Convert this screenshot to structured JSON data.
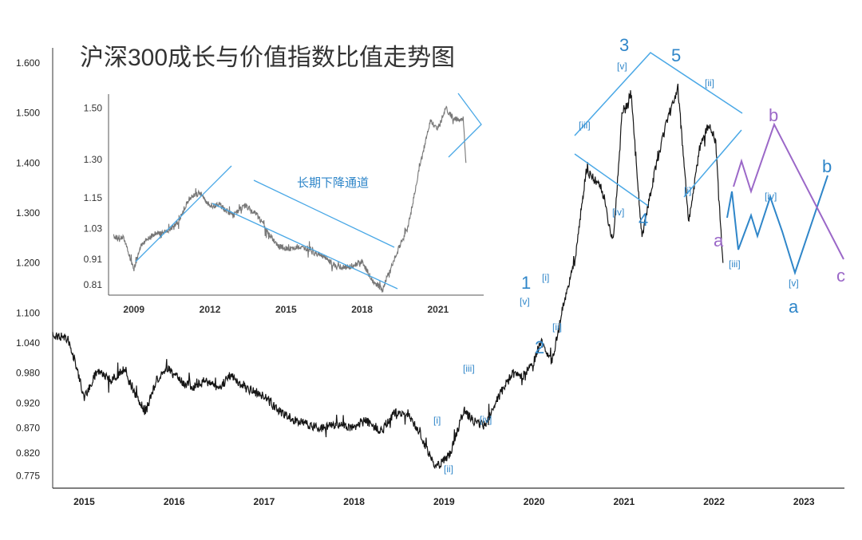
{
  "chart_data": {
    "type": "line",
    "title": "沪深300成长与价值指数比值走势图",
    "main": {
      "xlim": [
        2014.65,
        2023.45
      ],
      "ylim": [
        0.75,
        1.63
      ],
      "yticks": [
        "1.600",
        "1.500",
        "1.400",
        "1.300",
        "1.200",
        "1.100",
        "1.040",
        "0.980",
        "0.920",
        "0.870",
        "0.820",
        "0.775"
      ],
      "xticks": [
        "2015",
        "2016",
        "2017",
        "2018",
        "2019",
        "2020",
        "2021",
        "2022",
        "2023"
      ],
      "anchors": [
        [
          2014.65,
          1.055
        ],
        [
          2014.82,
          1.05
        ],
        [
          2014.92,
          0.99
        ],
        [
          2015.0,
          0.93
        ],
        [
          2015.15,
          0.985
        ],
        [
          2015.3,
          0.965
        ],
        [
          2015.45,
          0.99
        ],
        [
          2015.55,
          0.945
        ],
        [
          2015.68,
          0.9
        ],
        [
          2015.8,
          0.965
        ],
        [
          2015.92,
          0.99
        ],
        [
          2016.0,
          0.975
        ],
        [
          2016.2,
          0.95
        ],
        [
          2016.35,
          0.965
        ],
        [
          2016.5,
          0.95
        ],
        [
          2016.62,
          0.975
        ],
        [
          2016.8,
          0.95
        ],
        [
          2017.0,
          0.935
        ],
        [
          2017.15,
          0.905
        ],
        [
          2017.35,
          0.885
        ],
        [
          2017.6,
          0.87
        ],
        [
          2017.8,
          0.875
        ],
        [
          2018.0,
          0.87
        ],
        [
          2018.12,
          0.885
        ],
        [
          2018.3,
          0.865
        ],
        [
          2018.45,
          0.9
        ],
        [
          2018.6,
          0.9
        ],
        [
          2018.72,
          0.865
        ],
        [
          2018.9,
          0.79
        ],
        [
          2019.0,
          0.805
        ],
        [
          2019.07,
          0.82
        ],
        [
          2019.22,
          0.905
        ],
        [
          2019.32,
          0.885
        ],
        [
          2019.45,
          0.875
        ],
        [
          2019.6,
          0.93
        ],
        [
          2019.75,
          0.98
        ],
        [
          2019.88,
          0.975
        ],
        [
          2019.98,
          0.995
        ],
        [
          2020.08,
          1.045
        ],
        [
          2020.2,
          1.0
        ],
        [
          2020.33,
          1.12
        ],
        [
          2020.45,
          1.2
        ],
        [
          2020.58,
          1.385
        ],
        [
          2020.75,
          1.35
        ],
        [
          2020.88,
          1.24
        ],
        [
          2020.98,
          1.5
        ],
        [
          2021.08,
          1.54
        ],
        [
          2021.2,
          1.25
        ],
        [
          2021.35,
          1.39
        ],
        [
          2021.5,
          1.5
        ],
        [
          2021.6,
          1.55
        ],
        [
          2021.72,
          1.28
        ],
        [
          2021.85,
          1.44
        ],
        [
          2021.95,
          1.48
        ],
        [
          2022.02,
          1.44
        ],
        [
          2022.1,
          1.2
        ]
      ]
    },
    "inset": {
      "xlim": [
        2008.0,
        2022.8
      ],
      "ylim": [
        0.77,
        1.555
      ],
      "yticks": [
        "1.50",
        "1.30",
        "1.15",
        "1.03",
        "0.91",
        "0.81"
      ],
      "xticks": [
        "2009",
        "2012",
        "2015",
        "2018",
        "2021"
      ],
      "label": "长期下降通道",
      "anchors": [
        [
          2008.2,
          1.0
        ],
        [
          2008.6,
          0.99
        ],
        [
          2009.0,
          0.87
        ],
        [
          2009.3,
          0.97
        ],
        [
          2009.8,
          1.01
        ],
        [
          2010.3,
          1.02
        ],
        [
          2010.7,
          1.05
        ],
        [
          2011.2,
          1.15
        ],
        [
          2011.6,
          1.17
        ],
        [
          2012.0,
          1.12
        ],
        [
          2012.4,
          1.12
        ],
        [
          2012.9,
          1.08
        ],
        [
          2013.4,
          1.12
        ],
        [
          2013.9,
          1.08
        ],
        [
          2014.3,
          1.01
        ],
        [
          2014.7,
          0.96
        ],
        [
          2015.2,
          0.95
        ],
        [
          2015.6,
          0.96
        ],
        [
          2016.0,
          0.94
        ],
        [
          2016.5,
          0.92
        ],
        [
          2017.0,
          0.88
        ],
        [
          2017.5,
          0.88
        ],
        [
          2018.0,
          0.9
        ],
        [
          2018.4,
          0.83
        ],
        [
          2018.8,
          0.79
        ],
        [
          2019.3,
          0.92
        ],
        [
          2019.8,
          1.03
        ],
        [
          2020.3,
          1.28
        ],
        [
          2020.7,
          1.45
        ],
        [
          2021.0,
          1.42
        ],
        [
          2021.3,
          1.5
        ],
        [
          2021.6,
          1.46
        ],
        [
          2022.0,
          1.45
        ],
        [
          2022.1,
          1.29
        ]
      ]
    },
    "wave_labels": {
      "big": [
        "1",
        "2",
        "3",
        "4",
        "5"
      ],
      "sub": [
        "[i]",
        "[ii]",
        "[iii]",
        "[iv]",
        "[v]"
      ],
      "projection": [
        "a",
        "b",
        "c"
      ]
    },
    "colors": {
      "price": "#151515",
      "inset_price": "#777777",
      "channel": "#4aa8e6",
      "wave_blue": "#2f86c9",
      "wave_purple": "#9b68c8"
    }
  }
}
